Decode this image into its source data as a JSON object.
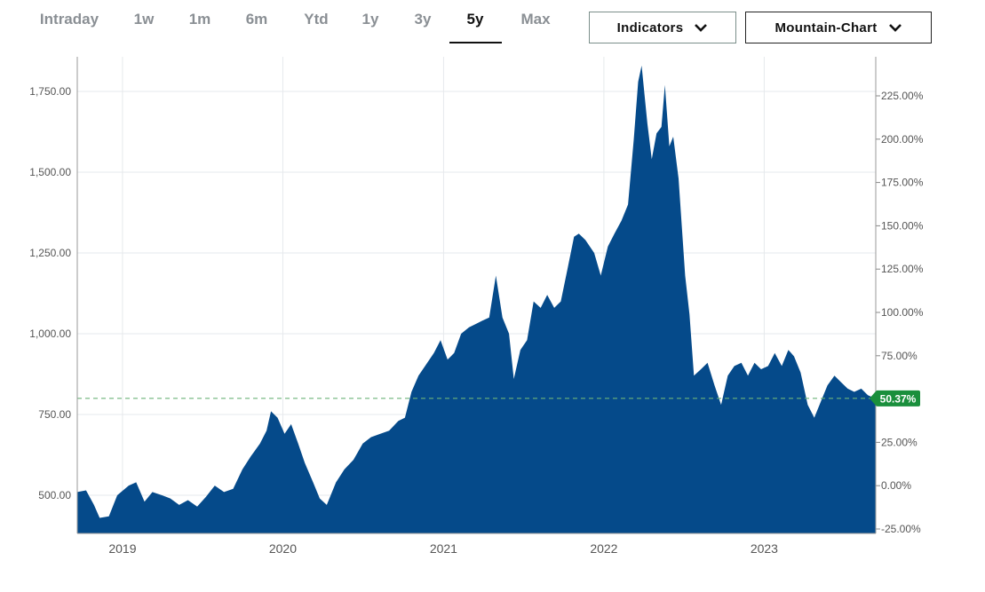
{
  "tabs": [
    {
      "label": "Intraday",
      "active": false
    },
    {
      "label": "1w",
      "active": false
    },
    {
      "label": "1m",
      "active": false
    },
    {
      "label": "6m",
      "active": false
    },
    {
      "label": "Ytd",
      "active": false
    },
    {
      "label": "1y",
      "active": false
    },
    {
      "label": "3y",
      "active": false
    },
    {
      "label": "5y",
      "active": true
    },
    {
      "label": "Max",
      "active": false
    }
  ],
  "controls": {
    "indicators_label": "Indicators",
    "chart_type_label": "Mountain-Chart"
  },
  "colors": {
    "area_fill": "#054a8a",
    "baseline_dash": "#6db37a",
    "change_badge": "#1a8f3c",
    "grid": "#e6e9ec"
  },
  "chart_data": {
    "type": "area",
    "x_range": [
      "2018-09",
      "2023-09"
    ],
    "x_ticks": [
      "2019",
      "2020",
      "2021",
      "2022",
      "2023"
    ],
    "y_left": {
      "ticks": [
        500,
        750,
        1000,
        1250,
        1500,
        1750
      ],
      "tick_labels": [
        "500.00",
        "750.00",
        "1,000.00",
        "1,250.00",
        "1,500.00",
        "1,750.00"
      ],
      "range": [
        380,
        1860
      ]
    },
    "y_right": {
      "ticks": [
        -25,
        0,
        25,
        50,
        75,
        100,
        125,
        150,
        175,
        200,
        225
      ],
      "tick_labels": [
        "-25.00%",
        "0.00%",
        "25.00%",
        "50.00%",
        "75.00%",
        "100.00%",
        "125.00%",
        "150.00%",
        "175.00%",
        "200.00%",
        "225.00%"
      ]
    },
    "baseline_value": 800,
    "current_change_label": "50.37%",
    "series": [
      {
        "points": [
          [
            "2018-09-20",
            510
          ],
          [
            "2018-10-10",
            515
          ],
          [
            "2018-10-28",
            470
          ],
          [
            "2018-11-10",
            430
          ],
          [
            "2018-12-01",
            435
          ],
          [
            "2018-12-20",
            500
          ],
          [
            "2019-01-15",
            530
          ],
          [
            "2019-02-01",
            540
          ],
          [
            "2019-02-20",
            480
          ],
          [
            "2019-03-10",
            510
          ],
          [
            "2019-04-01",
            500
          ],
          [
            "2019-04-20",
            490
          ],
          [
            "2019-05-10",
            470
          ],
          [
            "2019-05-30",
            485
          ],
          [
            "2019-06-20",
            465
          ],
          [
            "2019-07-10",
            495
          ],
          [
            "2019-07-30",
            530
          ],
          [
            "2019-08-20",
            510
          ],
          [
            "2019-09-10",
            520
          ],
          [
            "2019-10-01",
            580
          ],
          [
            "2019-10-20",
            620
          ],
          [
            "2019-11-10",
            660
          ],
          [
            "2019-11-25",
            700
          ],
          [
            "2019-12-05",
            760
          ],
          [
            "2019-12-20",
            740
          ],
          [
            "2020-01-05",
            690
          ],
          [
            "2020-01-20",
            720
          ],
          [
            "2020-02-05",
            660
          ],
          [
            "2020-02-20",
            600
          ],
          [
            "2020-03-10",
            540
          ],
          [
            "2020-03-25",
            490
          ],
          [
            "2020-04-10",
            470
          ],
          [
            "2020-05-01",
            540
          ],
          [
            "2020-05-20",
            580
          ],
          [
            "2020-06-10",
            610
          ],
          [
            "2020-07-01",
            660
          ],
          [
            "2020-07-20",
            680
          ],
          [
            "2020-08-10",
            690
          ],
          [
            "2020-08-30",
            700
          ],
          [
            "2020-09-20",
            730
          ],
          [
            "2020-10-05",
            740
          ],
          [
            "2020-10-20",
            820
          ],
          [
            "2020-11-05",
            870
          ],
          [
            "2020-11-20",
            900
          ],
          [
            "2020-12-10",
            940
          ],
          [
            "2020-12-25",
            980
          ],
          [
            "2021-01-10",
            920
          ],
          [
            "2021-01-25",
            940
          ],
          [
            "2021-02-10",
            1000
          ],
          [
            "2021-02-28",
            1020
          ],
          [
            "2021-03-15",
            1030
          ],
          [
            "2021-03-30",
            1040
          ],
          [
            "2021-04-15",
            1050
          ],
          [
            "2021-04-30",
            1180
          ],
          [
            "2021-05-15",
            1050
          ],
          [
            "2021-05-30",
            1000
          ],
          [
            "2021-06-10",
            860
          ],
          [
            "2021-06-25",
            950
          ],
          [
            "2021-07-10",
            980
          ],
          [
            "2021-07-25",
            1100
          ],
          [
            "2021-08-10",
            1080
          ],
          [
            "2021-08-25",
            1120
          ],
          [
            "2021-09-10",
            1080
          ],
          [
            "2021-09-25",
            1100
          ],
          [
            "2021-10-10",
            1200
          ],
          [
            "2021-10-25",
            1300
          ],
          [
            "2021-11-05",
            1310
          ],
          [
            "2021-11-20",
            1290
          ],
          [
            "2021-12-10",
            1250
          ],
          [
            "2021-12-25",
            1180
          ],
          [
            "2022-01-10",
            1270
          ],
          [
            "2022-01-25",
            1310
          ],
          [
            "2022-02-10",
            1350
          ],
          [
            "2022-02-25",
            1400
          ],
          [
            "2022-03-10",
            1600
          ],
          [
            "2022-03-20",
            1780
          ],
          [
            "2022-03-28",
            1830
          ],
          [
            "2022-04-10",
            1650
          ],
          [
            "2022-04-20",
            1540
          ],
          [
            "2022-05-01",
            1620
          ],
          [
            "2022-05-12",
            1640
          ],
          [
            "2022-05-20",
            1770
          ],
          [
            "2022-05-30",
            1580
          ],
          [
            "2022-06-08",
            1610
          ],
          [
            "2022-06-20",
            1480
          ],
          [
            "2022-07-05",
            1180
          ],
          [
            "2022-07-15",
            1060
          ],
          [
            "2022-07-25",
            870
          ],
          [
            "2022-08-10",
            890
          ],
          [
            "2022-08-25",
            910
          ],
          [
            "2022-09-10",
            840
          ],
          [
            "2022-09-25",
            780
          ],
          [
            "2022-10-10",
            870
          ],
          [
            "2022-10-25",
            900
          ],
          [
            "2022-11-10",
            910
          ],
          [
            "2022-11-25",
            870
          ],
          [
            "2022-12-10",
            910
          ],
          [
            "2022-12-25",
            890
          ],
          [
            "2023-01-10",
            900
          ],
          [
            "2023-01-25",
            940
          ],
          [
            "2023-02-10",
            900
          ],
          [
            "2023-02-25",
            950
          ],
          [
            "2023-03-10",
            930
          ],
          [
            "2023-03-25",
            880
          ],
          [
            "2023-04-10",
            780
          ],
          [
            "2023-04-25",
            740
          ],
          [
            "2023-05-10",
            790
          ],
          [
            "2023-05-25",
            840
          ],
          [
            "2023-06-10",
            870
          ],
          [
            "2023-06-25",
            850
          ],
          [
            "2023-07-10",
            830
          ],
          [
            "2023-07-25",
            820
          ],
          [
            "2023-08-10",
            830
          ],
          [
            "2023-08-25",
            810
          ],
          [
            "2023-09-10",
            800
          ]
        ]
      }
    ]
  }
}
